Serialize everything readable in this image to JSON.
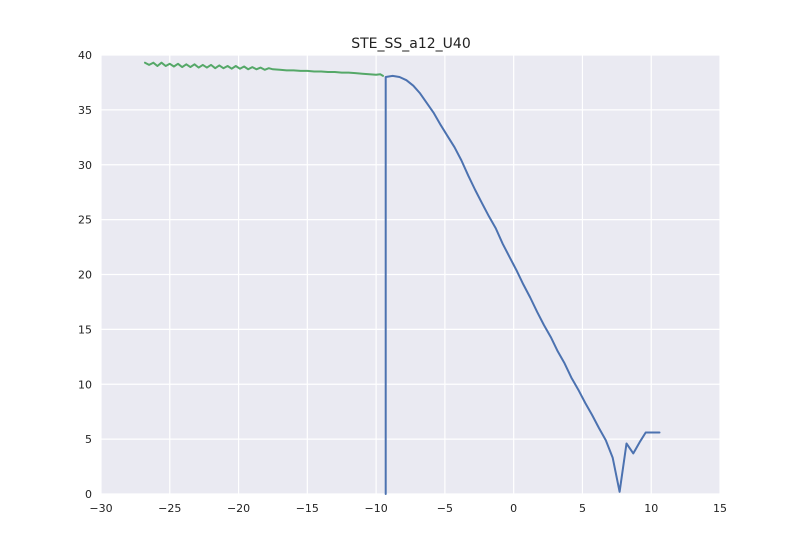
{
  "chart_data": {
    "type": "line",
    "title": "STE_SS_a12_U40",
    "xlabel": "",
    "ylabel": "",
    "xlim": [
      -30,
      15
    ],
    "ylim": [
      0,
      40
    ],
    "x_ticks": [
      "−30",
      "−25",
      "−20",
      "−15",
      "−10",
      "−5",
      "0",
      "5",
      "10",
      "15"
    ],
    "y_ticks": [
      "0",
      "5",
      "10",
      "15",
      "20",
      "25",
      "30",
      "35",
      "40"
    ],
    "grid": true,
    "colors": {
      "plot_background": "#eaeaf2",
      "grid": "#ffffff",
      "series_blue": "#4c72b0",
      "series_green": "#55a868"
    },
    "series": [
      {
        "color": "#55a868",
        "x": [
          -26.8,
          -26.5,
          -26.2,
          -25.9,
          -25.6,
          -25.3,
          -25.0,
          -24.7,
          -24.4,
          -24.1,
          -23.8,
          -23.5,
          -23.2,
          -22.9,
          -22.6,
          -22.3,
          -22.0,
          -21.7,
          -21.4,
          -21.1,
          -20.8,
          -20.5,
          -20.2,
          -19.9,
          -19.6,
          -19.3,
          -19.0,
          -18.7,
          -18.4,
          -18.1,
          -17.8,
          -17.5,
          -17.0,
          -16.5,
          -16.0,
          -15.5,
          -15.0,
          -14.5,
          -14.0,
          -13.5,
          -13.0,
          -12.5,
          -12.0,
          -11.5,
          -11.0,
          -10.5,
          -10.0,
          -9.7,
          -9.5
        ],
        "values": [
          39.3,
          39.1,
          39.3,
          39.0,
          39.3,
          39.0,
          39.2,
          38.95,
          39.2,
          38.9,
          39.15,
          38.9,
          39.15,
          38.85,
          39.1,
          38.85,
          39.1,
          38.8,
          39.05,
          38.8,
          39.0,
          38.75,
          39.0,
          38.75,
          38.95,
          38.7,
          38.9,
          38.7,
          38.85,
          38.65,
          38.8,
          38.7,
          38.65,
          38.6,
          38.6,
          38.55,
          38.55,
          38.5,
          38.5,
          38.45,
          38.45,
          38.4,
          38.4,
          38.35,
          38.3,
          38.25,
          38.2,
          38.25,
          38.1
        ]
      },
      {
        "color": "#4c72b0",
        "x": [
          -9.3,
          -9.3,
          -9.3,
          -8.8,
          -8.3,
          -7.8,
          -7.3,
          -6.8,
          -6.3,
          -5.8,
          -5.3,
          -4.8,
          -4.3,
          -3.8,
          -3.3,
          -2.8,
          -2.3,
          -1.8,
          -1.3,
          -0.8,
          -0.3,
          0.2,
          0.7,
          1.2,
          1.7,
          2.2,
          2.7,
          3.2,
          3.7,
          4.2,
          4.7,
          5.2,
          5.7,
          6.2,
          6.7,
          7.2,
          7.7,
          8.2,
          8.7,
          9.2,
          9.6,
          9.9,
          10.1,
          10.4,
          10.6
        ],
        "values": [
          0,
          38.0,
          38.0,
          38.1,
          38.0,
          37.7,
          37.2,
          36.5,
          35.6,
          34.7,
          33.6,
          32.6,
          31.6,
          30.4,
          29.0,
          27.7,
          26.5,
          25.3,
          24.2,
          22.8,
          21.6,
          20.4,
          19.1,
          17.9,
          16.6,
          15.4,
          14.3,
          13.0,
          11.9,
          10.6,
          9.5,
          8.3,
          7.2,
          6.0,
          4.9,
          3.3,
          0.2,
          4.6,
          3.7,
          4.8,
          5.6,
          5.6,
          5.6,
          5.6,
          5.6
        ]
      }
    ]
  }
}
